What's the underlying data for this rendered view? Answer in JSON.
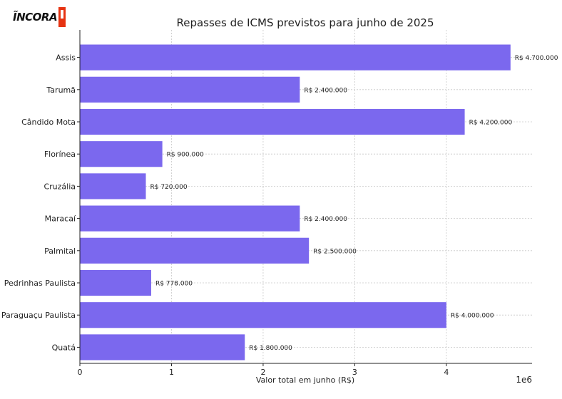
{
  "logo": {
    "text": "ĨNCORA"
  },
  "chart_data": {
    "type": "bar",
    "orientation": "horizontal",
    "title": "Repasses de ICMS previstos para junho de 2025",
    "xlabel": "Valor total em junho (R$)",
    "ylabel": "",
    "x_scale_label": "1e6",
    "xlim": [
      0,
      4935000
    ],
    "x_ticks": [
      0,
      1,
      2,
      3,
      4
    ],
    "grid": true,
    "bar_color": "#7B68EE",
    "categories": [
      "Assis",
      "Tarumã",
      "Cândido Mota",
      "Florínea",
      "Cruzália",
      "Maracaí",
      "Palmital",
      "Pedrinhas Paulista",
      "Paraguaçu Paulista",
      "Quatá"
    ],
    "values": [
      4700000,
      2400000,
      4200000,
      900000,
      720000,
      2400000,
      2500000,
      778000,
      4000000,
      1800000
    ],
    "data_labels": [
      "R$ 4.700.000",
      "R$ 2.400.000",
      "R$ 4.200.000",
      "R$ 900.000",
      "R$ 720.000",
      "R$ 2.400.000",
      "R$ 2.500.000",
      "R$ 778.000",
      "R$ 4.000.000",
      "R$ 1.800.000"
    ]
  }
}
